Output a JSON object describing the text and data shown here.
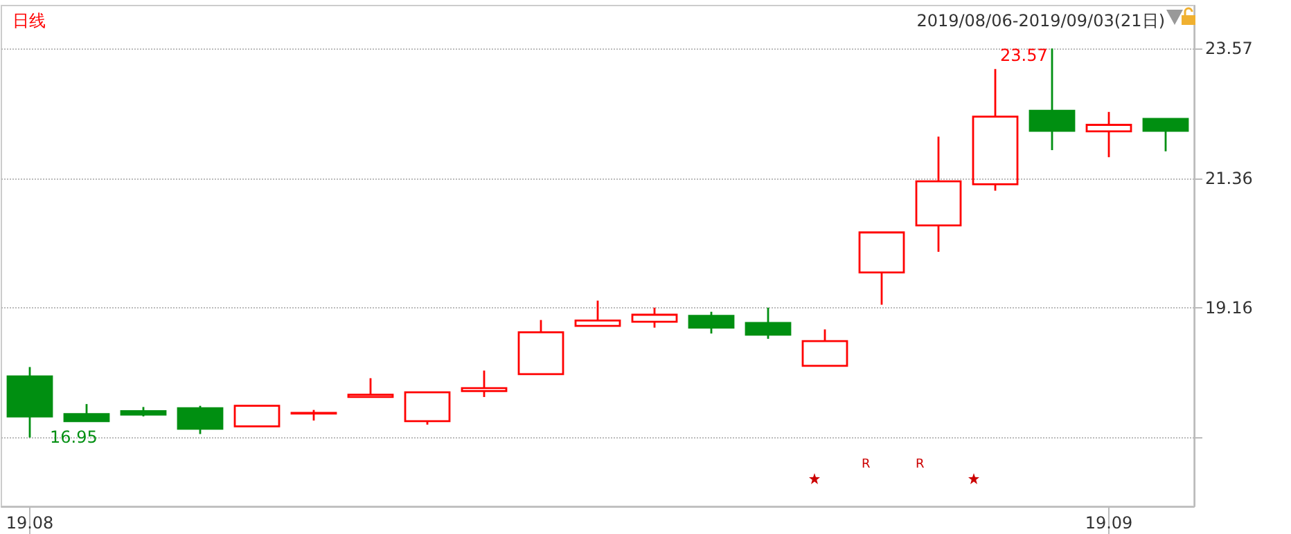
{
  "chart_data": {
    "type": "candlestick",
    "title": "日线",
    "subtitle": "2019/08/06-2019/09/03(21日)",
    "categories": [
      "19.08",
      null,
      null,
      null,
      null,
      null,
      null,
      null,
      null,
      null,
      null,
      null,
      null,
      null,
      null,
      null,
      null,
      null,
      null,
      "19.09",
      null
    ],
    "ohlc": [
      [
        17.99,
        18.15,
        16.95,
        17.31
      ],
      [
        17.35,
        17.52,
        17.23,
        17.23
      ],
      [
        17.4,
        17.47,
        17.31,
        17.34
      ],
      [
        17.45,
        17.49,
        17.01,
        17.1
      ],
      [
        17.14,
        17.49,
        17.14,
        17.49
      ],
      [
        17.36,
        17.42,
        17.24,
        17.37
      ],
      [
        17.64,
        17.96,
        17.63,
        17.68
      ],
      [
        17.23,
        17.72,
        17.17,
        17.72
      ],
      [
        17.74,
        18.09,
        17.64,
        17.79
      ],
      [
        18.03,
        18.95,
        18.03,
        18.74
      ],
      [
        18.85,
        19.28,
        18.85,
        18.94
      ],
      [
        18.92,
        19.16,
        18.82,
        19.04
      ],
      [
        19.02,
        19.09,
        18.72,
        18.82
      ],
      [
        18.9,
        19.16,
        18.63,
        18.7
      ],
      [
        18.17,
        18.79,
        18.17,
        18.59
      ],
      [
        19.76,
        20.44,
        19.21,
        20.44
      ],
      [
        20.56,
        22.07,
        20.11,
        21.31
      ],
      [
        21.26,
        23.22,
        21.15,
        22.41
      ],
      [
        22.51,
        23.57,
        21.84,
        22.17
      ],
      [
        22.16,
        22.49,
        21.72,
        22.27
      ],
      [
        22.37,
        22.37,
        21.82,
        22.17
      ]
    ],
    "colors": [
      "#008f11",
      "#008f11",
      "#008f11",
      "#008f11",
      "#ff0000",
      "#ff0000",
      "#ff0000",
      "#ff0000",
      "#ff0000",
      "#ff0000",
      "#ff0000",
      "#ff0000",
      "#008f11",
      "#008f11",
      "#ff0000",
      "#ff0000",
      "#ff0000",
      "#ff0000",
      "#008f11",
      "#ff0000",
      "#008f11"
    ],
    "ylim": [
      15.78,
      24.3
    ],
    "yticks": [
      {
        "value": 16.95,
        "label": null
      },
      19.16,
      21.36,
      23.57
    ],
    "grid": "y",
    "annotations": [
      "16.95",
      "23.57",
      "R",
      "R"
    ]
  }
}
